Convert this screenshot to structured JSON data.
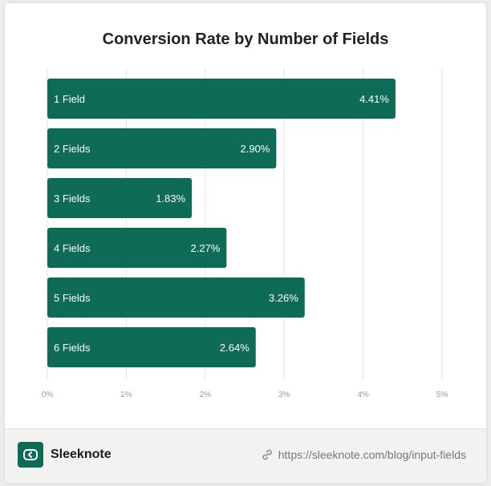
{
  "chart_data": {
    "type": "bar",
    "orientation": "horizontal",
    "title": "Conversion Rate by Number of Fields",
    "categories": [
      "1 Field",
      "2 Fields",
      "3 Fields",
      "4 Fields",
      "5 Fields",
      "6 Fields"
    ],
    "values": [
      4.41,
      2.9,
      1.83,
      2.27,
      3.26,
      2.64
    ],
    "value_labels": [
      "4.41%",
      "2.90%",
      "1.83%",
      "2.27%",
      "3.26%",
      "2.64%"
    ],
    "x_ticks": [
      "0%",
      "1%",
      "2%",
      "3%",
      "4%",
      "5%"
    ],
    "xlim": [
      0,
      5
    ],
    "grid": true,
    "bar_color": "#0d6b56",
    "label_color": "#ffffff"
  },
  "footer": {
    "brand": "Sleeknote",
    "url": "https://sleeknote.com/blog/input-fields",
    "logo_icon": "sleeknote-logo-icon",
    "link_icon": "link-icon"
  }
}
